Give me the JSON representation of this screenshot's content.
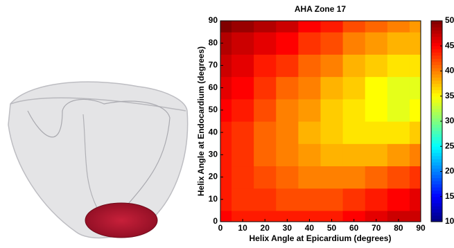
{
  "chart_data": {
    "type": "heatmap",
    "title": "AHA Zone 17",
    "x_label": "Helix Angle at Epicardium (degrees)",
    "y_label": "Helix Angle at Endocardium (degrees)",
    "x": [
      0,
      10,
      20,
      30,
      40,
      50,
      60,
      70,
      80,
      90
    ],
    "y": [
      0,
      10,
      20,
      30,
      40,
      50,
      60,
      70,
      80,
      90
    ],
    "values": [
      [
        45,
        44,
        44,
        44,
        44,
        44,
        45,
        46,
        47,
        47
      ],
      [
        44,
        43,
        43,
        42,
        42,
        42,
        43,
        44,
        45,
        46
      ],
      [
        44,
        43,
        42,
        41,
        40,
        40,
        40,
        41,
        42,
        43
      ],
      [
        44,
        43,
        41,
        40,
        39,
        38,
        38,
        38,
        39,
        40
      ],
      [
        44,
        43,
        41,
        40,
        38,
        37,
        36,
        36,
        36,
        37
      ],
      [
        45,
        44,
        42,
        40,
        39,
        37,
        36,
        35,
        34,
        35
      ],
      [
        46,
        45,
        43,
        41,
        40,
        38,
        37,
        35,
        34,
        34
      ],
      [
        47,
        46,
        44,
        43,
        41,
        40,
        38,
        37,
        36,
        36
      ],
      [
        48,
        47,
        46,
        45,
        43,
        42,
        40,
        39,
        38,
        38
      ],
      [
        50,
        49,
        48,
        47,
        45,
        44,
        42,
        41,
        40,
        39
      ]
    ],
    "xlim": [
      0,
      90
    ],
    "ylim": [
      0,
      90
    ],
    "xticks": [
      0,
      10,
      20,
      30,
      40,
      50,
      60,
      70,
      80,
      90
    ],
    "yticks": [
      0,
      10,
      20,
      30,
      40,
      50,
      60,
      70,
      80,
      90
    ],
    "colorbar_lim": [
      10,
      50
    ],
    "colorbar_ticks": [
      10,
      15,
      20,
      25,
      30,
      35,
      40,
      45,
      50
    ],
    "colormap": "jet"
  }
}
